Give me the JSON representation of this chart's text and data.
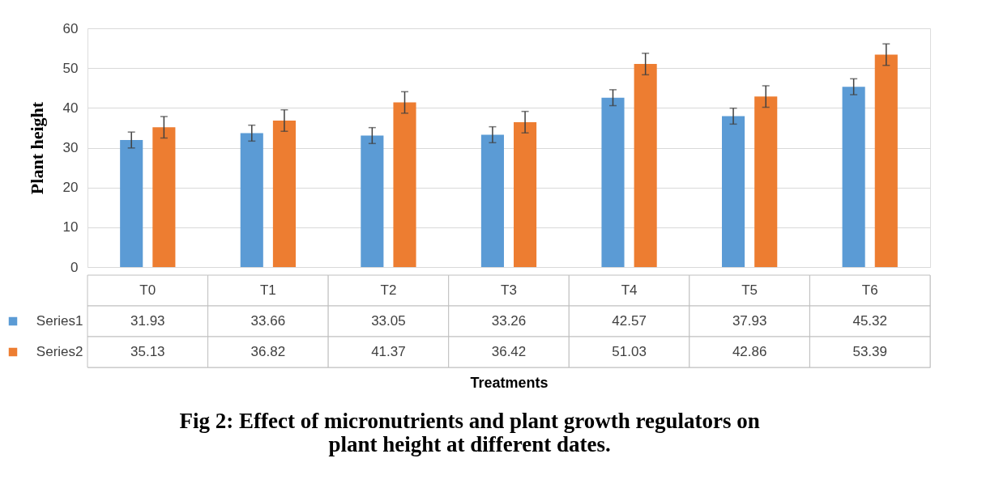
{
  "chart_data": {
    "type": "bar",
    "title": "Fig 2: Effect of micronutrients and plant growth regulators on plant height at different dates.",
    "annotations": [
      "Treatments"
    ],
    "ylabel": "Plant height",
    "categories": [
      "T0",
      "T1",
      "T2",
      "T3",
      "T4",
      "T5",
      "T6"
    ],
    "series": [
      {
        "name": "Series1",
        "color": "#5b9bd5",
        "values": [
          31.93,
          33.66,
          33.05,
          33.26,
          42.57,
          37.93,
          45.32
        ],
        "errors": [
          2,
          2,
          2,
          2,
          2,
          2,
          2
        ]
      },
      {
        "name": "Series2",
        "color": "#ed7d31",
        "values": [
          35.13,
          36.82,
          41.37,
          36.42,
          51.03,
          42.86,
          53.39
        ],
        "errors": [
          2.7,
          2.7,
          2.7,
          2.7,
          2.7,
          2.7,
          2.7
        ]
      }
    ],
    "ylim": [
      0,
      60
    ],
    "yticks": [
      0,
      10,
      20,
      30,
      40,
      50,
      60
    ],
    "grid": "y",
    "legend": "bottom",
    "data_labels": true
  }
}
